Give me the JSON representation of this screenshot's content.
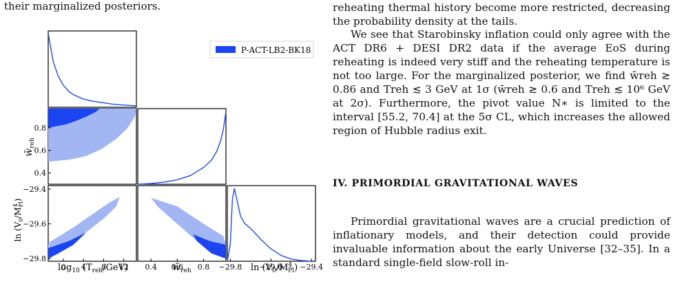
{
  "left_caption": "their marginalized posteriors.",
  "figure": {
    "legend_label": "P-ACT-LB2-BK18",
    "colors": {
      "dark": "#1a45f0",
      "light": "#a2b6f4",
      "line": "#1f49e6"
    },
    "axis_labels": {
      "log10T": "log10 (Treh/GeV)",
      "wreh": "w̄reh",
      "lnV0": "ln (V0/M4Pl)"
    },
    "ticks": {
      "log10T": [
        "0",
        "4",
        "8",
        "12"
      ],
      "wreh": [
        "0.4",
        "0.6",
        "0.8"
      ],
      "lnV0": [
        "−29.8",
        "−29.6",
        "−29.4"
      ],
      "wreh_y": [
        "0.8",
        "0.6",
        "0.4"
      ],
      "lnV0_y": [
        "−29.4",
        "−29.6",
        "−29.8"
      ]
    }
  },
  "chart_data": {
    "type": "corner",
    "parameters": [
      "log10(Treh/GeV)",
      "w̄reh",
      "ln(V0/M4Pl)"
    ],
    "legend": [
      "P-ACT-LB2-BK18"
    ],
    "ranges": {
      "log10T": [
        -3,
        14.5
      ],
      "wreh": [
        0.3,
        0.97
      ],
      "lnV0": [
        -29.815,
        -29.38
      ]
    },
    "marginals": {
      "log10T": {
        "x": [
          -3,
          -2,
          -1,
          0,
          1,
          2,
          4,
          6,
          8,
          10,
          12,
          14.5
        ],
        "p": [
          1.0,
          0.62,
          0.42,
          0.3,
          0.22,
          0.17,
          0.11,
          0.08,
          0.06,
          0.04,
          0.03,
          0.02
        ]
      },
      "wreh": {
        "x": [
          0.3,
          0.4,
          0.5,
          0.6,
          0.7,
          0.8,
          0.86,
          0.9,
          0.93,
          0.95,
          0.97
        ],
        "p": [
          0.0,
          0.01,
          0.03,
          0.06,
          0.12,
          0.23,
          0.33,
          0.45,
          0.6,
          0.75,
          1.0
        ]
      },
      "lnV0": {
        "x": [
          -29.815,
          -29.8,
          -29.79,
          -29.78,
          -29.75,
          -29.73,
          -29.7,
          -29.65,
          -29.6,
          -29.55,
          -29.5,
          -29.45,
          -29.4
        ],
        "p": [
          0.0,
          0.25,
          0.85,
          1.0,
          0.62,
          0.52,
          0.45,
          0.3,
          0.17,
          0.08,
          0.03,
          0.01,
          0.0
        ]
      }
    },
    "contours": {
      "log10T_wreh": {
        "sigma2": [
          [
            -3,
            0.97
          ],
          [
            14.5,
            0.97
          ],
          [
            14.2,
            0.9
          ],
          [
            12.8,
            0.8
          ],
          [
            10.5,
            0.7
          ],
          [
            7.5,
            0.61
          ],
          [
            4.5,
            0.55
          ],
          [
            1.5,
            0.52
          ],
          [
            -3,
            0.5
          ]
        ],
        "sigma1": [
          [
            -3,
            0.97
          ],
          [
            7.2,
            0.97
          ],
          [
            6.4,
            0.94
          ],
          [
            4.6,
            0.9
          ],
          [
            2.4,
            0.86
          ],
          [
            0.5,
            0.83
          ],
          [
            -3,
            0.8
          ]
        ]
      },
      "log10T_lnV0": {
        "sigma2": [
          [
            -3,
            -29.71
          ],
          [
            2,
            -29.62
          ],
          [
            6,
            -29.54
          ],
          [
            9,
            -29.48
          ],
          [
            11.2,
            -29.445
          ],
          [
            10.5,
            -29.5
          ],
          [
            8,
            -29.57
          ],
          [
            4,
            -29.66
          ],
          [
            0,
            -29.74
          ],
          [
            -3,
            -29.8
          ]
        ],
        "sigma1": [
          [
            -3,
            -29.74
          ],
          [
            1,
            -29.7
          ],
          [
            4.5,
            -29.65
          ],
          [
            2,
            -29.72
          ],
          [
            -1,
            -29.77
          ],
          [
            -3,
            -29.8
          ]
        ]
      },
      "wreh_lnV0": {
        "sigma2": [
          [
            0.4,
            -29.45
          ],
          [
            0.6,
            -29.5
          ],
          [
            0.8,
            -29.6
          ],
          [
            0.95,
            -29.67
          ],
          [
            0.97,
            -29.72
          ],
          [
            0.97,
            -29.8
          ],
          [
            0.9,
            -29.78
          ],
          [
            0.75,
            -29.7
          ],
          [
            0.6,
            -29.6
          ],
          [
            0.45,
            -29.5
          ]
        ],
        "sigma1": [
          [
            0.72,
            -29.66
          ],
          [
            0.85,
            -29.7
          ],
          [
            0.97,
            -29.72
          ],
          [
            0.97,
            -29.8
          ],
          [
            0.86,
            -29.77
          ],
          [
            0.75,
            -29.7
          ]
        ]
      }
    }
  },
  "right": {
    "para_top": "reheating thermal history become more restricted, decreasing the probability density at the tails.",
    "para_mid": "We see that Starobinsky inflation could only agree with the ACT DR6 + DESI DR2 data if the average EoS during reheating is indeed very stiff and the reheating temperature is not too large. For the marginalized posterior, we find w̄reh ≳ 0.86 and Treh ≲ 3 GeV at 1σ (w̄reh ≳ 0.6 and Treh ≲ 10⁶ GeV at 2σ). Furthermore, the pivot value N∗ is limited to the interval [55.2, 70.4] at the 5σ CL, which increases the allowed region of Hubble radius exit.",
    "heading": "IV.   PRIMORDIAL GRAVITATIONAL WAVES",
    "para_bot": "Primordial gravitational waves are a crucial prediction of inflationary models, and their detection could provide invaluable information about the early Universe [32–35]. In a standard single-field slow-roll in-"
  }
}
